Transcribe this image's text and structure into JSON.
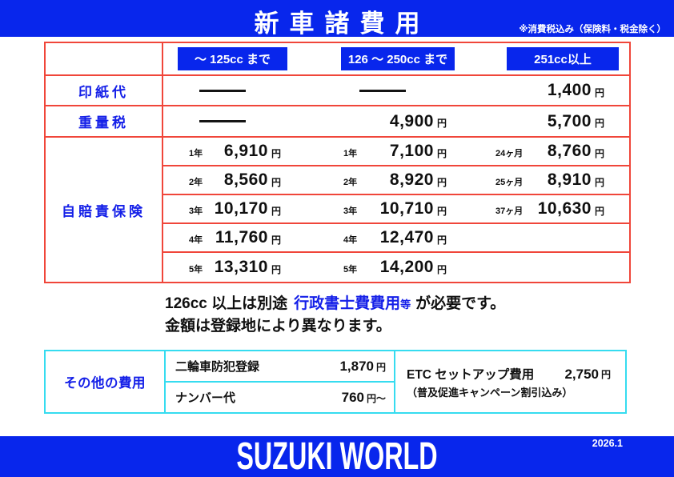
{
  "header": {
    "title": "新車諸費用",
    "tax_note": "※消費税込み（保険料・税金除く）"
  },
  "units": {
    "yen": "円",
    "yen_from": "円～"
  },
  "fee_table": {
    "col_headers": [
      "～ 125cc まで",
      "126 ～ 250cc まで",
      "251cc以上"
    ],
    "stamp": {
      "label": "印紙代",
      "c1": "———",
      "c2": "———",
      "c3": {
        "value": "1,400"
      }
    },
    "weight": {
      "label": "重量税",
      "c1": "———",
      "c2": {
        "value": "4,900"
      },
      "c3": {
        "value": "5,700"
      }
    },
    "insurance": {
      "label": "自賠責保険",
      "rows": [
        [
          {
            "period": "1年",
            "value": "6,910"
          },
          {
            "period": "1年",
            "value": "7,100"
          },
          {
            "period": "24ヶ月",
            "value": "8,760"
          }
        ],
        [
          {
            "period": "2年",
            "value": "8,560"
          },
          {
            "period": "2年",
            "value": "8,920"
          },
          {
            "period": "25ヶ月",
            "value": "8,910"
          }
        ],
        [
          {
            "period": "3年",
            "value": "10,170"
          },
          {
            "period": "3年",
            "value": "10,710"
          },
          {
            "period": "37ヶ月",
            "value": "10,630"
          }
        ],
        [
          {
            "period": "4年",
            "value": "11,760"
          },
          {
            "period": "4年",
            "value": "12,470"
          },
          null
        ],
        [
          {
            "period": "5年",
            "value": "13,310"
          },
          {
            "period": "5年",
            "value": "14,200"
          },
          null
        ]
      ]
    }
  },
  "note": {
    "line1_before": "126cc 以上は別途",
    "line1_blue": "行政書士費費用",
    "line1_blue_small": "等",
    "line1_after": "が必要です。",
    "line2": "金額は登録地により異なります。"
  },
  "other_fees": {
    "label": "その他の費用",
    "items": [
      {
        "name": "二輪車防犯登録",
        "value": "1,870",
        "unit": "円"
      },
      {
        "name": "ナンバー代",
        "value": "760",
        "unit": "円～"
      }
    ],
    "etc": {
      "name": "ETC セットアップ費用",
      "value": "2,750",
      "unit": "円",
      "note": "（普及促進キャンペーン割引込み）"
    }
  },
  "footer": {
    "brand": "SUZUKI WORLD",
    "date": "2026.1"
  }
}
